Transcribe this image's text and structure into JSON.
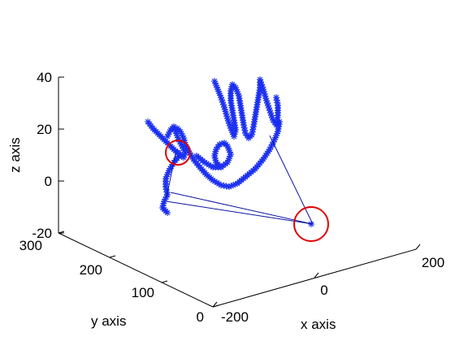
{
  "chart_data": {
    "type": "line3d",
    "title": "",
    "xlabel": "x axis",
    "ylabel": "y axis",
    "zlabel": "z axis",
    "xticks": [
      "-200",
      "0",
      "200"
    ],
    "yticks": [
      "0",
      "100",
      "200",
      "300"
    ],
    "zticks": [
      "40",
      "20",
      "0",
      "-20"
    ],
    "marker": "*",
    "colors": {
      "series": "#1a2ff0",
      "highlight": "#e00000"
    },
    "highlighted_points": 2
  }
}
